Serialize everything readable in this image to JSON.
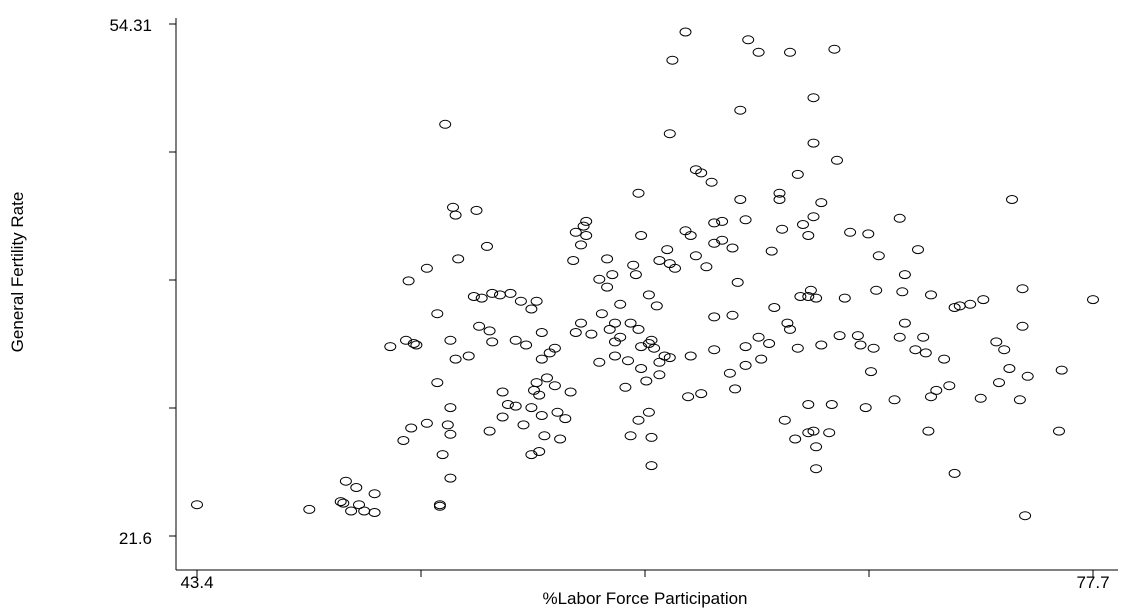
{
  "chart_data": {
    "type": "scatter",
    "xlabel": "%Labor Force Participation",
    "ylabel": "General Fertility Rate",
    "xlim": [
      43.4,
      77.7
    ],
    "ylim": [
      21.6,
      54.31
    ],
    "x_tick_labels": [
      "43.4",
      "77.7"
    ],
    "y_tick_labels": [
      "54.31",
      "21.6"
    ],
    "grid": false,
    "points": [
      [
        43.4,
        23.6
      ],
      [
        47.7,
        23.3
      ],
      [
        49.0,
        23.7
      ],
      [
        49.6,
        23.6
      ],
      [
        49.3,
        23.2
      ],
      [
        49.8,
        23.2
      ],
      [
        50.2,
        23.1
      ],
      [
        48.9,
        23.8
      ],
      [
        50.2,
        24.3
      ],
      [
        52.7,
        23.6
      ],
      [
        52.7,
        23.5
      ],
      [
        49.1,
        25.1
      ],
      [
        49.5,
        24.7
      ],
      [
        50.8,
        33.7
      ],
      [
        51.4,
        34.1
      ],
      [
        51.7,
        33.9
      ],
      [
        51.5,
        37.9
      ],
      [
        53.4,
        39.3
      ],
      [
        52.6,
        35.8
      ],
      [
        53.1,
        34.1
      ],
      [
        53.3,
        32.9
      ],
      [
        54.2,
        35.0
      ],
      [
        53.8,
        33.1
      ],
      [
        54.0,
        36.9
      ],
      [
        54.3,
        36.8
      ],
      [
        54.7,
        37.1
      ],
      [
        55.0,
        37.0
      ],
      [
        55.4,
        37.1
      ],
      [
        55.8,
        36.6
      ],
      [
        54.5,
        40.1
      ],
      [
        54.1,
        42.4
      ],
      [
        53.3,
        42.1
      ],
      [
        52.9,
        47.9
      ],
      [
        53.2,
        42.6
      ],
      [
        52.2,
        38.7
      ],
      [
        51.8,
        33.8
      ],
      [
        52.6,
        31.4
      ],
      [
        53.1,
        29.8
      ],
      [
        53.1,
        28.1
      ],
      [
        52.8,
        26.8
      ],
      [
        53.1,
        25.3
      ],
      [
        53.0,
        28.7
      ],
      [
        52.2,
        28.8
      ],
      [
        51.6,
        28.5
      ],
      [
        51.3,
        27.7
      ],
      [
        54.6,
        34.7
      ],
      [
        54.7,
        34.0
      ],
      [
        55.1,
        30.8
      ],
      [
        55.3,
        30.0
      ],
      [
        55.6,
        34.1
      ],
      [
        56.0,
        33.8
      ],
      [
        56.2,
        36.1
      ],
      [
        56.4,
        36.6
      ],
      [
        56.6,
        34.6
      ],
      [
        56.6,
        32.9
      ],
      [
        56.9,
        33.3
      ],
      [
        57.1,
        33.6
      ],
      [
        57.1,
        31.2
      ],
      [
        56.8,
        31.7
      ],
      [
        56.5,
        30.6
      ],
      [
        56.2,
        29.8
      ],
      [
        55.6,
        29.9
      ],
      [
        55.1,
        29.2
      ],
      [
        54.6,
        28.3
      ],
      [
        55.9,
        28.7
      ],
      [
        56.2,
        26.8
      ],
      [
        56.5,
        27.0
      ],
      [
        56.6,
        29.3
      ],
      [
        56.4,
        31.4
      ],
      [
        56.3,
        30.9
      ],
      [
        56.7,
        28.0
      ],
      [
        57.3,
        27.8
      ],
      [
        57.5,
        29.1
      ],
      [
        57.7,
        30.8
      ],
      [
        57.2,
        29.5
      ],
      [
        57.9,
        34.6
      ],
      [
        58.1,
        35.2
      ],
      [
        58.5,
        34.5
      ],
      [
        58.9,
        35.8
      ],
      [
        59.2,
        34.8
      ],
      [
        59.4,
        35.2
      ],
      [
        59.6,
        36.4
      ],
      [
        58.8,
        38.0
      ],
      [
        58.3,
        41.7
      ],
      [
        57.9,
        41.0
      ],
      [
        58.2,
        41.4
      ],
      [
        57.8,
        39.2
      ],
      [
        59.1,
        37.5
      ],
      [
        59.4,
        34.0
      ],
      [
        59.6,
        34.3
      ],
      [
        60.0,
        35.2
      ],
      [
        60.3,
        34.8
      ],
      [
        61.1,
        31.9
      ],
      [
        60.6,
        31.5
      ],
      [
        59.8,
        31.1
      ],
      [
        60.7,
        29.5
      ],
      [
        60.3,
        29.0
      ],
      [
        60.0,
        28.0
      ],
      [
        60.8,
        27.9
      ],
      [
        60.8,
        26.1
      ],
      [
        58.8,
        32.7
      ],
      [
        59.4,
        33.1
      ],
      [
        59.9,
        32.8
      ],
      [
        60.4,
        33.7
      ],
      [
        60.7,
        33.9
      ],
      [
        60.9,
        33.6
      ],
      [
        60.4,
        32.3
      ],
      [
        61.1,
        32.7
      ],
      [
        60.8,
        34.1
      ],
      [
        61.3,
        33.1
      ],
      [
        61.5,
        33.0
      ],
      [
        61.0,
        36.3
      ],
      [
        60.7,
        37.0
      ],
      [
        60.2,
        38.3
      ],
      [
        60.1,
        38.9
      ],
      [
        59.3,
        38.3
      ],
      [
        59.1,
        39.3
      ],
      [
        58.1,
        40.2
      ],
      [
        58.3,
        40.8
      ],
      [
        60.4,
        40.8
      ],
      [
        60.3,
        43.5
      ],
      [
        61.5,
        39.0
      ],
      [
        61.1,
        39.2
      ],
      [
        61.4,
        39.9
      ],
      [
        62.1,
        41.1
      ],
      [
        62.3,
        40.8
      ],
      [
        62.5,
        39.5
      ],
      [
        61.7,
        38.7
      ],
      [
        62.9,
        38.8
      ],
      [
        63.2,
        40.3
      ],
      [
        63.5,
        40.5
      ],
      [
        63.2,
        41.6
      ],
      [
        63.5,
        41.7
      ],
      [
        63.1,
        44.2
      ],
      [
        62.5,
        45.0
      ],
      [
        62.7,
        44.8
      ],
      [
        64.2,
        48.8
      ],
      [
        64.5,
        53.3
      ],
      [
        64.9,
        52.5
      ],
      [
        66.1,
        52.5
      ],
      [
        67.8,
        52.7
      ],
      [
        67.9,
        45.6
      ],
      [
        61.5,
        47.3
      ],
      [
        61.6,
        52.0
      ],
      [
        62.1,
        53.8
      ],
      [
        67.0,
        46.7
      ],
      [
        67.0,
        49.6
      ],
      [
        67.3,
        42.9
      ],
      [
        67.0,
        42.0
      ],
      [
        68.4,
        41.0
      ],
      [
        69.1,
        40.9
      ],
      [
        69.5,
        39.5
      ],
      [
        69.4,
        37.3
      ],
      [
        68.2,
        36.8
      ],
      [
        68.0,
        34.4
      ],
      [
        68.7,
        34.4
      ],
      [
        68.8,
        33.8
      ],
      [
        69.3,
        33.6
      ],
      [
        69.2,
        32.1
      ],
      [
        69.0,
        29.8
      ],
      [
        67.7,
        30.0
      ],
      [
        67.0,
        28.3
      ],
      [
        66.8,
        28.2
      ],
      [
        66.8,
        30.0
      ],
      [
        64.4,
        32.5
      ],
      [
        63.8,
        32.0
      ],
      [
        64.0,
        31.0
      ],
      [
        62.7,
        30.7
      ],
      [
        62.2,
        30.5
      ],
      [
        62.3,
        33.1
      ],
      [
        63.2,
        33.5
      ],
      [
        63.2,
        35.6
      ],
      [
        63.9,
        35.7
      ],
      [
        64.4,
        33.7
      ],
      [
        64.9,
        34.3
      ],
      [
        65.3,
        33.9
      ],
      [
        65.0,
        32.9
      ],
      [
        66.1,
        34.8
      ],
      [
        66.4,
        33.6
      ],
      [
        66.0,
        35.2
      ],
      [
        65.5,
        36.2
      ],
      [
        66.5,
        36.9
      ],
      [
        66.8,
        36.9
      ],
      [
        66.9,
        37.3
      ],
      [
        66.8,
        40.8
      ],
      [
        65.4,
        39.8
      ],
      [
        65.8,
        41.2
      ],
      [
        66.6,
        41.5
      ],
      [
        65.7,
        43.1
      ],
      [
        65.7,
        43.5
      ],
      [
        66.4,
        44.7
      ],
      [
        64.4,
        41.8
      ],
      [
        64.2,
        43.1
      ],
      [
        63.9,
        40.0
      ],
      [
        64.1,
        37.8
      ],
      [
        67.1,
        36.8
      ],
      [
        65.9,
        29.0
      ],
      [
        66.3,
        27.8
      ],
      [
        67.1,
        25.9
      ],
      [
        67.6,
        28.2
      ],
      [
        67.1,
        27.3
      ],
      [
        67.3,
        33.8
      ],
      [
        70.1,
        30.3
      ],
      [
        70.3,
        34.3
      ],
      [
        70.5,
        35.2
      ],
      [
        70.4,
        37.2
      ],
      [
        70.5,
        38.3
      ],
      [
        71.0,
        39.9
      ],
      [
        70.3,
        41.9
      ],
      [
        71.2,
        34.3
      ],
      [
        70.9,
        33.5
      ],
      [
        71.3,
        33.3
      ],
      [
        71.7,
        30.9
      ],
      [
        71.5,
        30.5
      ],
      [
        71.4,
        28.3
      ],
      [
        72.2,
        31.2
      ],
      [
        72.0,
        32.9
      ],
      [
        72.4,
        36.2
      ],
      [
        72.6,
        36.3
      ],
      [
        73.0,
        36.4
      ],
      [
        73.5,
        36.7
      ],
      [
        74.0,
        34.0
      ],
      [
        74.3,
        33.5
      ],
      [
        74.5,
        32.3
      ],
      [
        74.1,
        31.4
      ],
      [
        74.9,
        30.3
      ],
      [
        75.2,
        31.8
      ],
      [
        74.6,
        43.1
      ],
      [
        75.0,
        35.0
      ],
      [
        75.1,
        22.9
      ],
      [
        75.0,
        37.4
      ],
      [
        72.4,
        25.6
      ],
      [
        76.4,
        28.3
      ],
      [
        76.5,
        32.2
      ],
      [
        77.7,
        36.7
      ],
      [
        73.4,
        30.4
      ],
      [
        71.5,
        37.0
      ]
    ]
  }
}
